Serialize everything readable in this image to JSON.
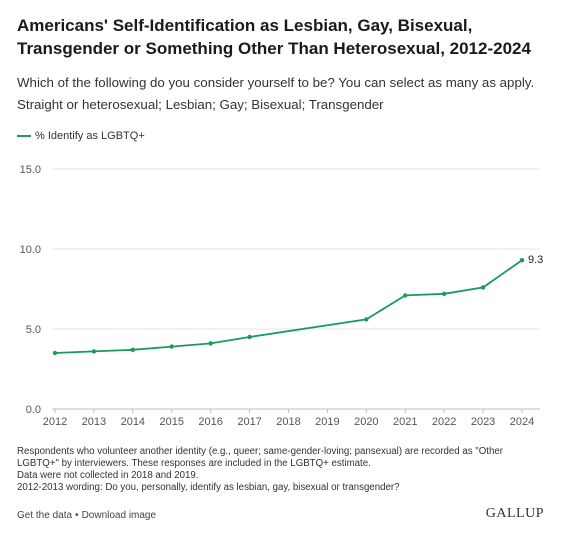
{
  "header": {
    "title": "Americans' Self-Identification as Lesbian, Gay, Bisexual, Transgender or Something Other Than Heterosexual, 2012-2024",
    "subtitle_line1": "Which of the following do you consider yourself to be? You can select as many as apply.",
    "subtitle_line2": "Straight or heterosexual; Lesbian; Gay; Bisexual; Transgender"
  },
  "colors": {
    "line": "#1a9b5a",
    "grid": "#e6e6e6",
    "axis": "#555555"
  },
  "chart_data": {
    "type": "line",
    "title": "Americans' Self-Identification as Lesbian, Gay, Bisexual, Transgender or Something Other Than Heterosexual, 2012-2024",
    "x": [
      2012,
      2013,
      2014,
      2015,
      2016,
      2017,
      2020,
      2021,
      2022,
      2023,
      2024
    ],
    "series": [
      {
        "name": "% Identify as LGBTQ+",
        "values": [
          3.5,
          3.6,
          3.7,
          3.9,
          4.1,
          4.5,
          5.6,
          7.1,
          7.2,
          7.6,
          9.3
        ]
      }
    ],
    "x_ticks": [
      "2012",
      "2013",
      "2014",
      "2015",
      "2016",
      "2017",
      "2018",
      "2019",
      "2020",
      "2021",
      "2022",
      "2023",
      "2024"
    ],
    "y_ticks": [
      "0.0",
      "5.0",
      "10.0",
      "15.0"
    ],
    "xlim": [
      2012,
      2024
    ],
    "ylim": [
      0,
      15
    ],
    "end_label": "9.3",
    "grid": "horizontal",
    "legend": "top-left"
  },
  "notes": {
    "line1": "Respondents who volunteer another identity (e.g., queer; same-gender-loving; pansexual) are recorded as \"Other LGBTQ+\" by interviewers. These responses are included in the LGBTQ+ estimate.",
    "line2": "Data were not collected in 2018 and 2019.",
    "line3": "2012-2013 wording: Do you, personally, identify as lesbian, gay, bisexual or transgender?"
  },
  "footer": {
    "get_data": "Get the data",
    "separator": "•",
    "download": "Download image",
    "brand": "GALLUP"
  }
}
